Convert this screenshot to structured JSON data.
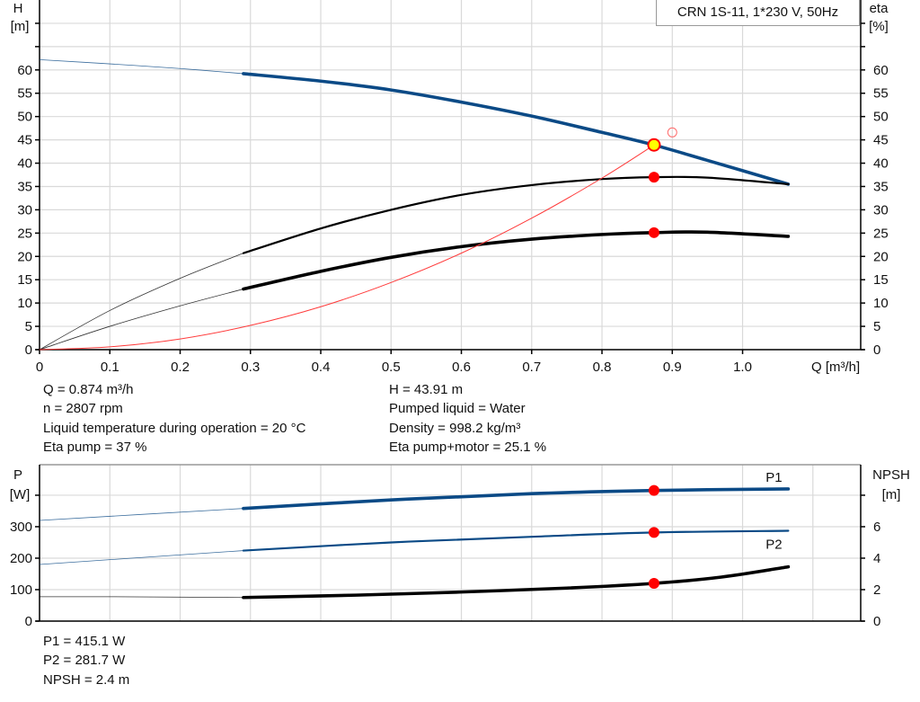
{
  "chart_data": [
    {
      "type": "line",
      "title": "CRN 1S-11, 1*230 V, 50Hz",
      "xlabel": "Q [m³/h]",
      "ylabel_left": [
        "H",
        "[m]"
      ],
      "ylabel_right": [
        "eta",
        "[%]"
      ],
      "xlim": [
        0,
        1.168
      ],
      "ylim": [
        0,
        75
      ],
      "x_ticks": [
        0,
        0.1,
        0.2,
        0.3,
        0.4,
        0.5,
        0.6,
        0.7,
        0.8,
        0.9,
        1.0
      ],
      "x_tick_labels": [
        "0",
        "0.1",
        "0.2",
        "0.3",
        "0.4",
        "0.5",
        "0.6",
        "0.7",
        "0.8",
        "0.9",
        "1.0"
      ],
      "y_ticks": [
        0,
        5,
        10,
        15,
        20,
        25,
        30,
        35,
        40,
        45,
        50,
        55,
        60,
        65,
        70
      ],
      "y_tick_labels": [
        "0",
        "5",
        "10",
        "15",
        "20",
        "25",
        "30",
        "35",
        "40",
        "45",
        "50",
        "55",
        "60",
        "",
        ""
      ],
      "grid": true,
      "series": [
        {
          "key": "H",
          "axis": "left",
          "color": "#0b4a86",
          "thick_from": 0.29,
          "x": [
            0,
            0.1,
            0.2,
            0.29,
            0.4,
            0.5,
            0.6,
            0.7,
            0.8,
            0.874,
            0.95,
            1.065
          ],
          "y": [
            62.2,
            61.3,
            60.3,
            59.2,
            57.6,
            55.7,
            53.1,
            50.1,
            46.6,
            43.9,
            40.6,
            35.5
          ]
        },
        {
          "key": "eta_pump",
          "axis": "right",
          "color": "#000000",
          "thick_from": 0.29,
          "x": [
            0,
            0.1,
            0.2,
            0.29,
            0.4,
            0.5,
            0.6,
            0.7,
            0.8,
            0.874,
            0.95,
            1.065
          ],
          "y": [
            0,
            8.4,
            15.3,
            20.7,
            26.0,
            30.0,
            33.2,
            35.3,
            36.6,
            37.0,
            36.9,
            35.5
          ]
        },
        {
          "key": "eta_pump_motor",
          "axis": "right",
          "color": "#000000",
          "thick_from": 0.29,
          "x": [
            0,
            0.1,
            0.2,
            0.29,
            0.4,
            0.5,
            0.6,
            0.7,
            0.8,
            0.874,
            0.95,
            1.065
          ],
          "y": [
            0,
            5.0,
            9.4,
            13.0,
            16.8,
            19.8,
            22.1,
            23.7,
            24.7,
            25.1,
            25.2,
            24.3
          ]
        },
        {
          "key": "system_curve",
          "axis": "left",
          "color": "#ff3b3b",
          "x": [
            0,
            0.1,
            0.2,
            0.3,
            0.4,
            0.5,
            0.6,
            0.7,
            0.8,
            0.874
          ],
          "y": [
            0,
            0.6,
            2.3,
            5.2,
            9.2,
            14.4,
            20.7,
            28.2,
            36.8,
            43.9
          ]
        }
      ],
      "duty_points": [
        {
          "key": "H",
          "x": 0.874,
          "y": 43.91,
          "fill": "#ffff00",
          "stroke": "#ff0000"
        },
        {
          "key": "eta_pump",
          "x": 0.874,
          "y": 37,
          "fill": "#ff0000",
          "stroke": "#ff0000"
        },
        {
          "key": "eta_pump_motor",
          "x": 0.874,
          "y": 25.1,
          "fill": "#ff0000",
          "stroke": "#ff0000"
        }
      ],
      "open_marker": {
        "x": 0.9,
        "y": 46.6,
        "stroke": "#ff6b6b"
      }
    },
    {
      "type": "line",
      "ylabel_left": [
        "P",
        "[W]"
      ],
      "ylabel_right": [
        "NPSH",
        "[m]"
      ],
      "xlim": [
        0,
        1.168
      ],
      "ylim": [
        0,
        497
      ],
      "y2lim": [
        0,
        9.94
      ],
      "x_ticks": [
        0,
        0.1,
        0.2,
        0.3,
        0.4,
        0.5,
        0.6,
        0.7,
        0.8,
        0.9,
        1.0,
        1.1
      ],
      "y_ticks": [
        0,
        100,
        200,
        300,
        400
      ],
      "y_tick_labels": [
        "0",
        "100",
        "200",
        "300",
        ""
      ],
      "y2_ticks": [
        0,
        2,
        4,
        6,
        8
      ],
      "y2_tick_labels": [
        "0",
        "2",
        "4",
        "6",
        ""
      ],
      "grid": true,
      "series": [
        {
          "key": "P1",
          "name": "P1",
          "axis": "left",
          "color": "#0b4a86",
          "thick_from": 0.29,
          "x": [
            0,
            0.29,
            0.5,
            0.7,
            0.874,
            1.065
          ],
          "y": [
            320,
            358,
            385,
            405,
            415.1,
            420
          ]
        },
        {
          "key": "P2",
          "name": "P2",
          "axis": "left",
          "color": "#0b4a86",
          "thick_from": 0.29,
          "medium": true,
          "x": [
            0,
            0.29,
            0.5,
            0.7,
            0.874,
            1.065
          ],
          "y": [
            180,
            224,
            250,
            268,
            281.7,
            287
          ]
        },
        {
          "key": "NPSH",
          "axis": "right",
          "color": "#000000",
          "thick_from": 0.29,
          "x": [
            0,
            0.1,
            0.29,
            0.45,
            0.6,
            0.75,
            0.874,
            0.97,
            1.065
          ],
          "y": [
            1.55,
            1.55,
            1.5,
            1.65,
            1.85,
            2.1,
            2.4,
            2.8,
            3.45
          ]
        }
      ],
      "duty_points": [
        {
          "key": "P1",
          "axis": "left",
          "x": 0.874,
          "y": 415.1,
          "fill": "#ff0000"
        },
        {
          "key": "P2",
          "axis": "left",
          "x": 0.874,
          "y": 281.7,
          "fill": "#ff0000"
        },
        {
          "key": "NPSH",
          "axis": "right",
          "x": 0.874,
          "y": 2.4,
          "fill": "#ff0000"
        }
      ]
    }
  ],
  "info_top": {
    "left": [
      "Q = 0.874 m³/h",
      "n = 2807 rpm",
      "Liquid temperature during operation = 20 °C",
      "Eta pump = 37 %"
    ],
    "right": [
      "H = 43.91 m",
      "Pumped liquid = Water",
      "Density = 998.2 kg/m³",
      "Eta pump+motor = 25.1 %"
    ]
  },
  "info_bottom": [
    "P1 = 415.1 W",
    "P2 = 281.7 W",
    "NPSH = 2.4 m"
  ]
}
